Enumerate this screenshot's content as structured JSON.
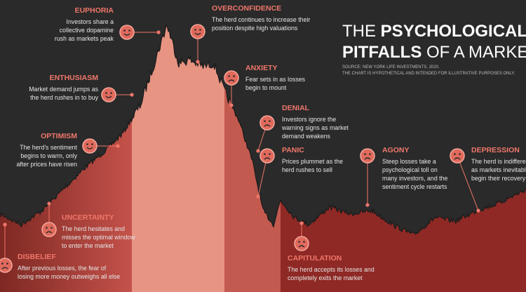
{
  "header": {
    "title_light": "THE",
    "title_bold": "PSYCHOLOGICAL",
    "line2_bold": "PITFALLS",
    "line2_rest": "OF A MARKET CYCLE",
    "source": "SOURCE: NEW YORK LIFE INVESTMENTS, 2020.",
    "note": "THE CHART IS HYPOTHETICAL AND INTENDED FOR ILLUSTRATIVE PURPOSES ONLY."
  },
  "stages": [
    {
      "label": "EUPHORIA",
      "lines": [
        "Investors share a",
        "collective dopamine",
        "rush as markets peak"
      ]
    },
    {
      "label": "ENTHUSIASM",
      "lines": [
        "Market demand jumps as",
        "the herd rushes in to buy"
      ]
    },
    {
      "label": "OPTIMISM",
      "lines": [
        "The herd's sentiment",
        "begins to warm, only",
        "after prices have risen"
      ]
    },
    {
      "label": "UNCERTAINTY",
      "lines": [
        "The herd hesitates and",
        "misses the optimal window",
        "to enter the market"
      ]
    },
    {
      "label": "DISBELIEF",
      "lines": [
        "After previous losses, the fear of",
        "losing more money outweighs all else"
      ]
    },
    {
      "label": "OVERCONFIDENCE",
      "lines": [
        "The herd continues to increase their",
        "position despite high valuations"
      ]
    },
    {
      "label": "ANXIETY",
      "lines": [
        "Fear sets in as losses",
        "begin to mount"
      ]
    },
    {
      "label": "DENIAL",
      "lines": [
        "Investors ignore the",
        "warning signs as market",
        "demand weakens"
      ]
    },
    {
      "label": "PANIC",
      "lines": [
        "Prices plummet as the",
        "herd rushes to sell"
      ]
    },
    {
      "label": "AGONY",
      "lines": [
        "Steep losses take a",
        "psychological toll on",
        "many investors, and the",
        "sentiment cycle restarts"
      ]
    },
    {
      "label": "DEPRESSION",
      "lines": [
        "The herd is indifferent",
        "as markets inevitably",
        "begin their recovery"
      ]
    },
    {
      "label": "CAPITULATION",
      "lines": [
        "The herd accepts its losses and",
        "completely exits the market"
      ]
    }
  ]
}
